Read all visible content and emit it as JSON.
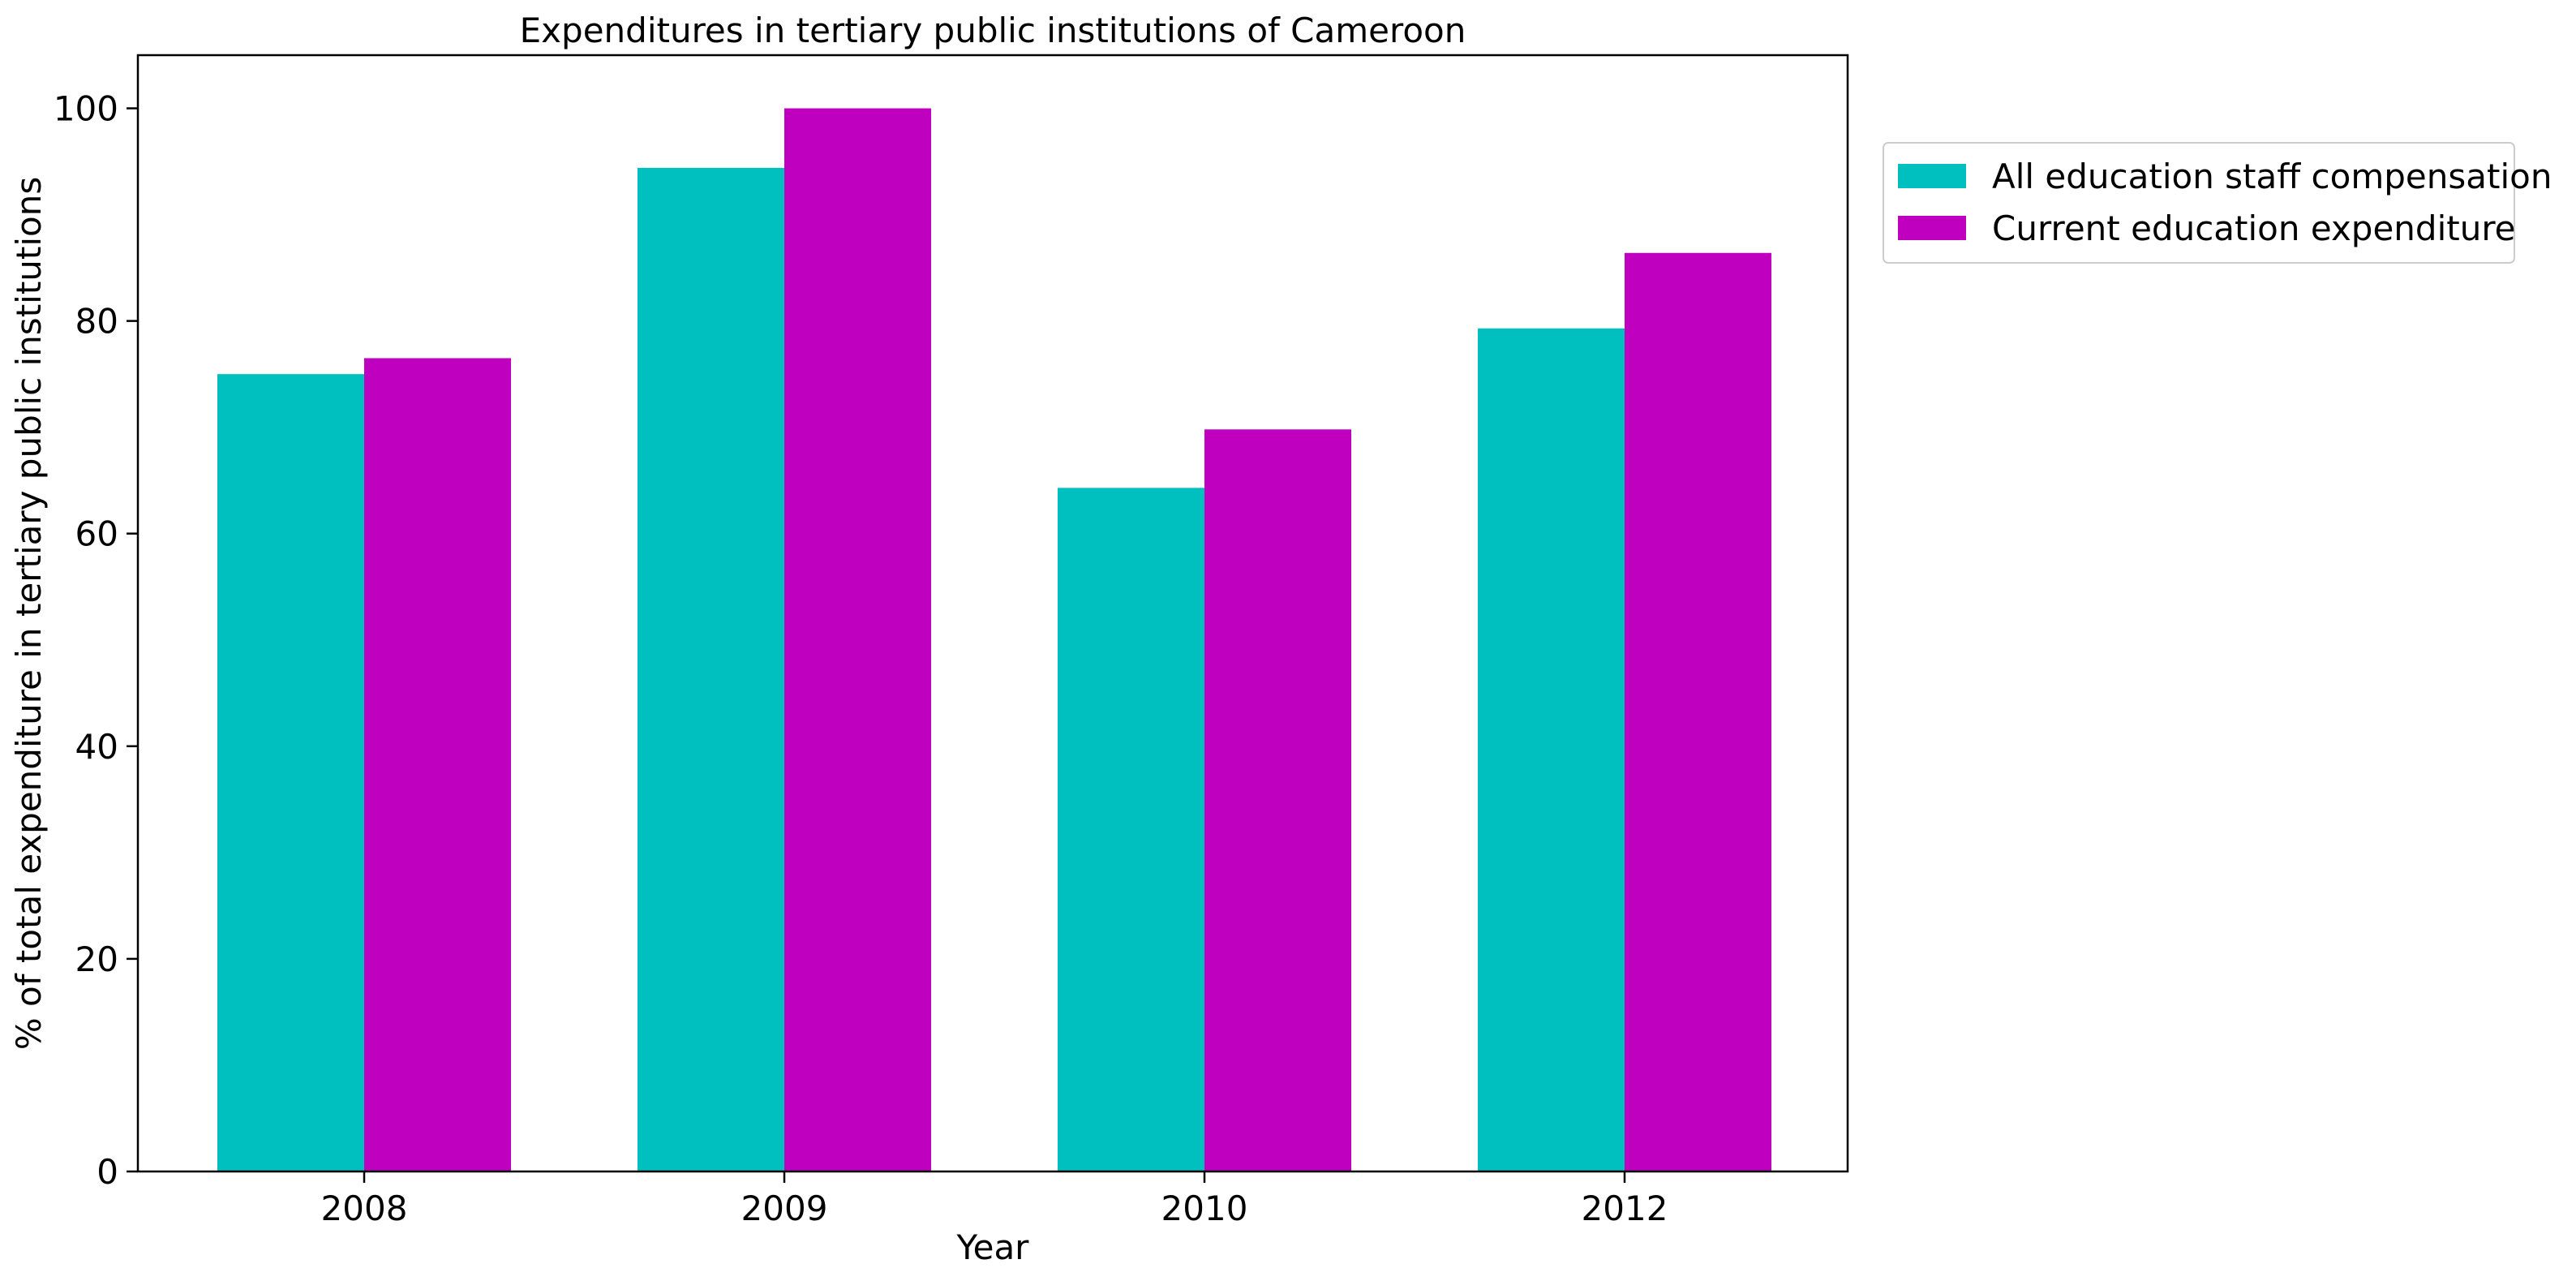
{
  "chart_data": {
    "type": "bar",
    "title": "Expenditures in tertiary public institutions of Cameroon",
    "xlabel": "Year",
    "ylabel": "% of total expenditure in tertiary public institutions",
    "categories": [
      "2008",
      "2009",
      "2010",
      "2012"
    ],
    "series": [
      {
        "name": "All education staff compensation",
        "values": [
          75.0,
          94.4,
          64.3,
          79.3
        ],
        "color": "#00bfbf"
      },
      {
        "name": "Current education expenditure",
        "values": [
          76.5,
          100.0,
          69.8,
          86.4
        ],
        "color": "#bf00bf"
      }
    ],
    "ylim": [
      0,
      105
    ],
    "yticks": [
      0,
      20,
      40,
      60,
      80,
      100
    ],
    "grid": false,
    "legend_position": "outside-right-top"
  }
}
